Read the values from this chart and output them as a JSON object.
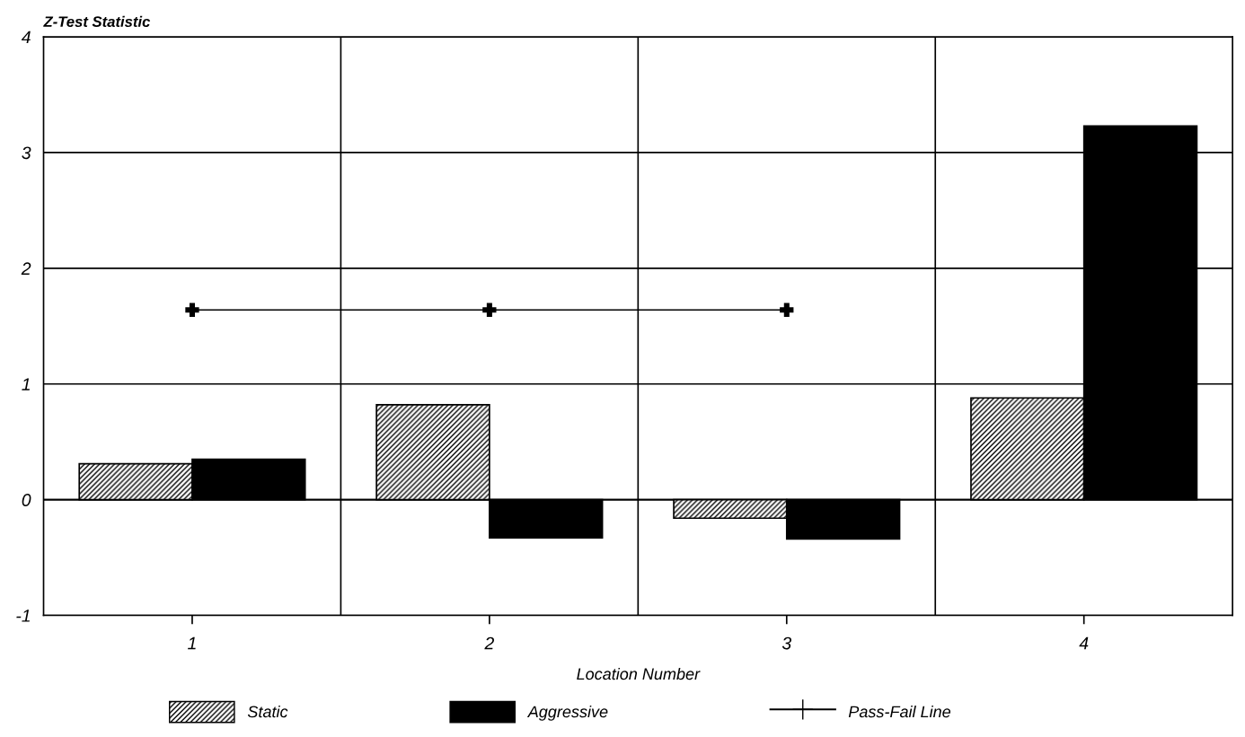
{
  "chart_data": {
    "type": "bar",
    "ylabel": "Z-Test Statistic",
    "xlabel": "Location Number",
    "categories": [
      "1",
      "2",
      "3",
      "4"
    ],
    "series": [
      {
        "name": "Static",
        "color": "#000000",
        "values": [
          0.31,
          0.82,
          -0.16,
          0.88
        ]
      },
      {
        "name": "Aggressive",
        "color": "#000000",
        "values": [
          0.35,
          -0.33,
          -0.34,
          3.23
        ]
      },
      {
        "name": "Pass-Fail Line",
        "type": "line",
        "color": "#000000",
        "marker": "cross",
        "values": [
          1.64,
          1.64,
          1.64,
          null
        ]
      }
    ],
    "ylim": [
      -1,
      4
    ],
    "yticks": [
      -1,
      0,
      1,
      2,
      3,
      4
    ],
    "grid": true,
    "legend": "bottom"
  }
}
